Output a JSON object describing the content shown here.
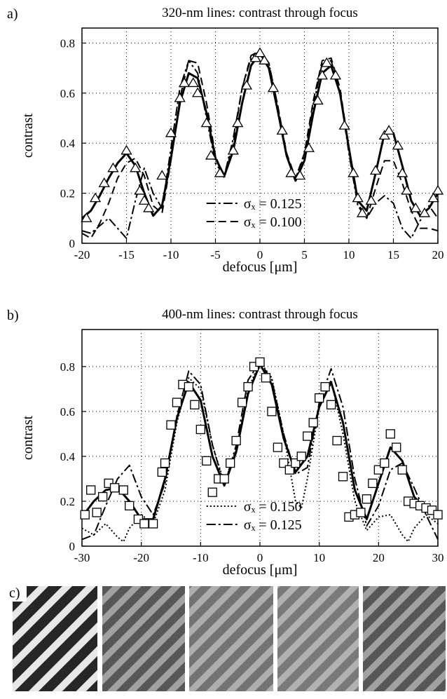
{
  "chart_data": [
    {
      "type": "line",
      "panel_label": "a)",
      "title": "320-nm lines: contrast through focus",
      "xlabel": "defocus [μm]",
      "ylabel": "contrast",
      "xlim": [
        -20,
        20
      ],
      "ylim": [
        0,
        0.86
      ],
      "xticks": [
        -20,
        -15,
        -10,
        -5,
        0,
        5,
        10,
        15,
        20
      ],
      "yticks": [
        0,
        0.2,
        0.4,
        0.6,
        0.8
      ],
      "grid": true,
      "legend": "lower center",
      "series": [
        {
          "color": "#000000",
          "style": "markers",
          "marker": "triangle",
          "x": [
            -19.5,
            -18.5,
            -17.5,
            -16.5,
            -15,
            -14,
            -13.5,
            -13,
            -12.5,
            -11,
            -10,
            -9,
            -8.5,
            -7.5,
            -7,
            -6,
            -5.5,
            -4.5,
            -3,
            -2.5,
            -1.5,
            -0.5,
            0,
            0.5,
            1.5,
            2.5,
            3.5,
            4.5,
            5.5,
            6.5,
            7,
            7.5,
            8.5,
            9.5,
            10.5,
            11,
            11.5,
            12.5,
            13,
            14,
            14.5,
            15.5,
            16,
            16.5,
            17.5,
            18.5,
            19.5,
            20
          ],
          "values": [
            0.1,
            0.18,
            0.24,
            0.3,
            0.37,
            0.3,
            0.21,
            0.17,
            0.14,
            0.27,
            0.44,
            0.58,
            0.64,
            0.64,
            0.6,
            0.48,
            0.35,
            0.28,
            0.37,
            0.48,
            0.63,
            0.74,
            0.76,
            0.73,
            0.62,
            0.45,
            0.28,
            0.27,
            0.38,
            0.57,
            0.67,
            0.72,
            0.67,
            0.47,
            0.28,
            0.18,
            0.12,
            0.17,
            0.29,
            0.43,
            0.45,
            0.39,
            0.28,
            0.21,
            0.14,
            0.12,
            0.18,
            0.21
          ]
        },
        {
          "color": "#000000",
          "style": "solid",
          "x": [
            -20,
            -19,
            -18,
            -17,
            -16,
            -15,
            -14,
            -13,
            -12,
            -11,
            -10,
            -9,
            -8,
            -7,
            -6,
            -5,
            -4,
            -3,
            -2,
            -1,
            0,
            1,
            2,
            3,
            4,
            5,
            6,
            7,
            8,
            9,
            10,
            11,
            12,
            13,
            14,
            15,
            16,
            17,
            18,
            19,
            20
          ],
          "values": [
            0.1,
            0.13,
            0.19,
            0.26,
            0.32,
            0.36,
            0.31,
            0.2,
            0.11,
            0.15,
            0.34,
            0.56,
            0.68,
            0.66,
            0.52,
            0.34,
            0.27,
            0.37,
            0.56,
            0.71,
            0.76,
            0.7,
            0.53,
            0.35,
            0.25,
            0.33,
            0.52,
            0.68,
            0.71,
            0.6,
            0.38,
            0.17,
            0.13,
            0.28,
            0.44,
            0.44,
            0.31,
            0.17,
            0.11,
            0.14,
            0.2
          ]
        },
        {
          "name": "σₓ = 0.125",
          "color": "#000000",
          "style": "dashdot",
          "x": [
            -20,
            -19,
            -18,
            -17,
            -16,
            -15,
            -14,
            -13,
            -12,
            -11,
            -10,
            -9,
            -8,
            -7,
            -6,
            -5,
            -4,
            -3,
            -2,
            -1,
            0,
            1,
            2,
            3,
            4,
            5,
            6,
            7,
            8,
            9,
            10,
            11,
            12,
            13,
            14,
            15,
            16,
            17,
            18,
            19,
            20
          ],
          "values": [
            0.05,
            0.04,
            0.07,
            0.1,
            0.06,
            0.02,
            0.17,
            0.3,
            0.2,
            0.14,
            0.38,
            0.62,
            0.73,
            0.68,
            0.5,
            0.32,
            0.27,
            0.42,
            0.62,
            0.74,
            0.77,
            0.72,
            0.55,
            0.35,
            0.26,
            0.35,
            0.55,
            0.72,
            0.73,
            0.6,
            0.36,
            0.15,
            0.1,
            0.16,
            0.19,
            0.16,
            0.06,
            0.02,
            0.09,
            0.15,
            0.1
          ]
        },
        {
          "name": "σₓ = 0.100",
          "color": "#000000",
          "style": "dashed",
          "x": [
            -20,
            -19,
            -18,
            -17,
            -16,
            -15,
            -14,
            -13,
            -12,
            -11,
            -10,
            -9,
            -8,
            -7,
            -6,
            -5,
            -4,
            -3,
            -2,
            -1,
            0,
            1,
            2,
            3,
            4,
            5,
            6,
            7,
            8,
            9,
            10,
            11,
            12,
            13,
            14,
            15,
            16,
            17,
            18,
            19,
            20
          ],
          "values": [
            0.04,
            0.02,
            0.08,
            0.16,
            0.26,
            0.32,
            0.34,
            0.27,
            0.15,
            0.12,
            0.33,
            0.58,
            0.73,
            0.72,
            0.56,
            0.35,
            0.26,
            0.4,
            0.62,
            0.75,
            0.77,
            0.72,
            0.55,
            0.36,
            0.26,
            0.36,
            0.57,
            0.73,
            0.74,
            0.62,
            0.38,
            0.16,
            0.1,
            0.22,
            0.33,
            0.33,
            0.24,
            0.13,
            0.06,
            0.06,
            0.05
          ]
        }
      ]
    },
    {
      "type": "line",
      "panel_label": "b)",
      "title": "400-nm lines: contrast through focus",
      "xlabel": "defocus [μm]",
      "ylabel": "contrast",
      "xlim": [
        -30,
        30
      ],
      "ylim": [
        0,
        0.965
      ],
      "xticks": [
        -30,
        -20,
        -10,
        0,
        10,
        20,
        30
      ],
      "yticks": [
        0,
        0.2,
        0.4,
        0.6,
        0.8
      ],
      "grid": true,
      "legend": "lower center",
      "series": [
        {
          "color": "#000000",
          "style": "markers",
          "marker": "square",
          "x": [
            -29.5,
            -28.5,
            -27.5,
            -26.5,
            -25.5,
            -24.5,
            -23,
            -22,
            -20.5,
            -19.5,
            -18,
            -16.5,
            -16,
            -15,
            -14,
            -13,
            -12,
            -11,
            -10,
            -9,
            -8,
            -7,
            -6,
            -5,
            -4,
            -3,
            -2,
            -1,
            0,
            1,
            2,
            3,
            4,
            5,
            6,
            7,
            8,
            9,
            10,
            11,
            12,
            13,
            14,
            15,
            16,
            17,
            18,
            19,
            20,
            21,
            22,
            23,
            24,
            25,
            26,
            27,
            28,
            29,
            30
          ],
          "values": [
            0.14,
            0.25,
            0.15,
            0.22,
            0.28,
            0.26,
            0.25,
            0.18,
            0.12,
            0.1,
            0.1,
            0.33,
            0.37,
            0.54,
            0.64,
            0.72,
            0.71,
            0.63,
            0.52,
            0.38,
            0.24,
            0.3,
            0.3,
            0.37,
            0.47,
            0.64,
            0.71,
            0.8,
            0.82,
            0.75,
            0.6,
            0.44,
            0.37,
            0.34,
            0.37,
            0.4,
            0.49,
            0.55,
            0.66,
            0.71,
            0.63,
            0.47,
            0.31,
            0.13,
            0.14,
            0.15,
            0.21,
            0.28,
            0.34,
            0.37,
            0.5,
            0.44,
            0.34,
            0.2,
            0.19,
            0.18,
            0.17,
            0.16,
            0.14
          ]
        },
        {
          "color": "#000000",
          "style": "solid",
          "x": [
            -30,
            -28,
            -26,
            -24,
            -22,
            -20,
            -18,
            -16,
            -14,
            -12,
            -10,
            -8,
            -6,
            -4,
            -2,
            0,
            2,
            4,
            6,
            8,
            10,
            12,
            14,
            16,
            18,
            20,
            22,
            24,
            26,
            28,
            30
          ],
          "values": [
            0.13,
            0.2,
            0.25,
            0.26,
            0.2,
            0.12,
            0.12,
            0.3,
            0.57,
            0.73,
            0.65,
            0.4,
            0.27,
            0.42,
            0.68,
            0.81,
            0.72,
            0.48,
            0.33,
            0.4,
            0.62,
            0.73,
            0.55,
            0.25,
            0.12,
            0.28,
            0.44,
            0.38,
            0.22,
            0.16,
            0.14
          ]
        },
        {
          "name": "σₓ = 0.150",
          "color": "#000000",
          "style": "dotted",
          "x": [
            -30,
            -28,
            -26,
            -24,
            -23,
            -22,
            -20,
            -18,
            -16,
            -14,
            -12,
            -10,
            -8,
            -6,
            -4,
            -2,
            0,
            2,
            4,
            6,
            7,
            8,
            10,
            12,
            14,
            16,
            18,
            20,
            22,
            24,
            25,
            26,
            28,
            30
          ],
          "values": [
            0.08,
            0.05,
            0.1,
            0.04,
            0.02,
            0.08,
            0.14,
            0.1,
            0.25,
            0.55,
            0.75,
            0.7,
            0.45,
            0.28,
            0.43,
            0.7,
            0.82,
            0.75,
            0.5,
            0.2,
            0.17,
            0.3,
            0.62,
            0.74,
            0.5,
            0.2,
            0.07,
            0.13,
            0.14,
            0.05,
            0.02,
            0.08,
            0.14,
            0.1
          ]
        },
        {
          "name": "σₓ = 0.125",
          "color": "#000000",
          "style": "dashdot",
          "x": [
            -30,
            -28,
            -26,
            -24,
            -22,
            -20,
            -18,
            -16,
            -14,
            -12,
            -10,
            -8,
            -6,
            -4,
            -2,
            0,
            2,
            4,
            6,
            8,
            10,
            12,
            14,
            16,
            18,
            20,
            22,
            24,
            26,
            28,
            30
          ],
          "values": [
            0.03,
            0.05,
            0.18,
            0.3,
            0.36,
            0.22,
            0.14,
            0.28,
            0.58,
            0.78,
            0.72,
            0.45,
            0.27,
            0.45,
            0.74,
            0.82,
            0.74,
            0.5,
            0.32,
            0.35,
            0.64,
            0.79,
            0.62,
            0.3,
            0.09,
            0.18,
            0.34,
            0.37,
            0.26,
            0.14,
            0.03
          ]
        }
      ]
    }
  ],
  "images_panel": {
    "label": "c)"
  }
}
